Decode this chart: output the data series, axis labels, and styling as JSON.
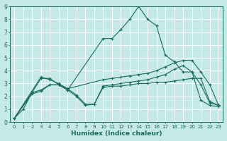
{
  "xlabel": "Humidex (Indice chaleur)",
  "xlim": [
    -0.5,
    23.5
  ],
  "ylim": [
    0,
    9
  ],
  "xticks": [
    0,
    1,
    2,
    3,
    4,
    5,
    6,
    7,
    8,
    9,
    10,
    11,
    12,
    13,
    14,
    15,
    16,
    17,
    18,
    19,
    20,
    21,
    22,
    23
  ],
  "yticks": [
    0,
    1,
    2,
    3,
    4,
    5,
    6,
    7,
    8,
    9
  ],
  "bg_color": "#c5e8e8",
  "line_color": "#1a6b5a",
  "grid_color": "#b8d8d8",
  "series": [
    {
      "x": [
        0,
        1,
        2,
        3,
        4,
        5,
        6,
        10,
        11,
        12,
        13,
        14,
        15,
        16,
        17,
        18,
        19,
        20,
        21,
        22,
        23
      ],
      "y": [
        0.3,
        1.0,
        2.3,
        3.4,
        3.4,
        2.9,
        2.5,
        6.5,
        6.5,
        7.2,
        8.0,
        9.0,
        8.0,
        7.5,
        5.2,
        4.7,
        3.9,
        3.9,
        2.9,
        1.5,
        1.3
      ]
    },
    {
      "x": [
        0,
        3,
        4,
        5,
        6,
        7,
        8,
        9,
        10,
        11,
        12,
        13,
        14,
        15,
        16,
        17,
        18,
        19,
        20,
        21,
        22,
        23
      ],
      "y": [
        0.3,
        3.5,
        3.3,
        3.0,
        2.6,
        2.1,
        1.4,
        1.4,
        2.7,
        2.8,
        2.8,
        2.9,
        3.0,
        3.0,
        3.1,
        3.1,
        3.2,
        3.3,
        3.4,
        3.4,
        1.6,
        1.3
      ]
    },
    {
      "x": [
        0,
        2,
        3,
        4,
        5,
        6,
        10,
        11,
        12,
        13,
        14,
        15,
        16,
        17,
        18,
        19,
        20,
        21,
        22,
        23
      ],
      "y": [
        0.3,
        2.3,
        2.5,
        2.9,
        2.9,
        2.6,
        3.3,
        3.4,
        3.5,
        3.6,
        3.7,
        3.8,
        4.0,
        4.3,
        4.6,
        4.8,
        4.8,
        3.9,
        2.9,
        1.3
      ]
    },
    {
      "x": [
        0,
        2,
        3,
        4,
        5,
        6,
        7,
        8,
        9,
        10,
        11,
        12,
        13,
        14,
        15,
        16,
        17,
        18,
        19,
        20,
        21,
        22,
        23
      ],
      "y": [
        0.3,
        2.2,
        2.4,
        2.9,
        2.9,
        2.5,
        2.0,
        1.3,
        1.4,
        2.8,
        2.9,
        3.0,
        3.1,
        3.2,
        3.3,
        3.5,
        3.7,
        4.1,
        4.4,
        3.9,
        1.7,
        1.3,
        1.2
      ]
    }
  ]
}
